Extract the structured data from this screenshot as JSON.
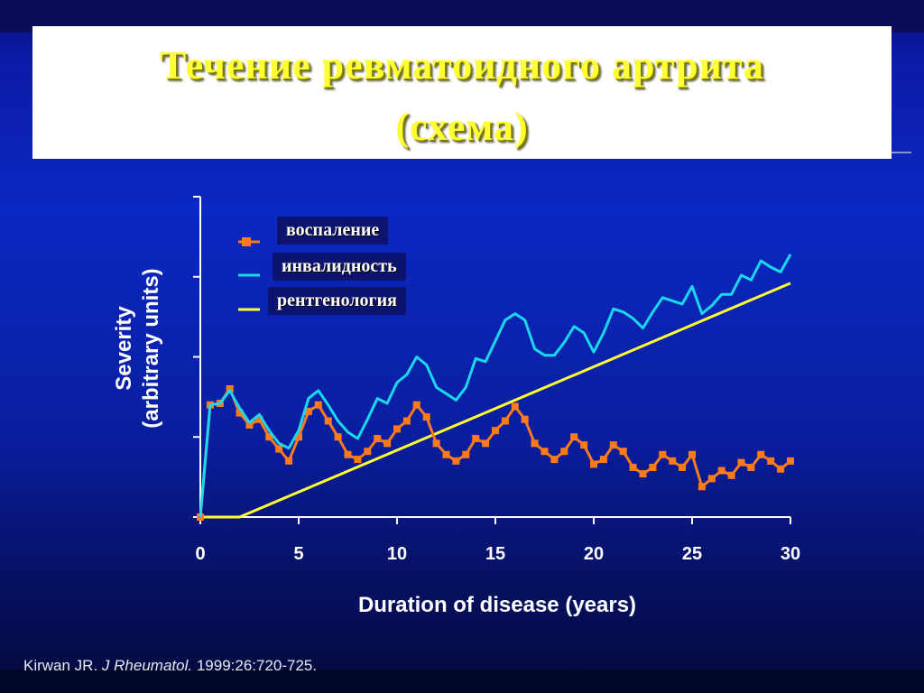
{
  "slide": {
    "title_line1": "Течение ревматоидного артрита",
    "title_line2": "(схема)",
    "citation_author": "Kirwan JR.",
    "citation_journal": "J Rheumatol.",
    "citation_ref": "1999:26:720-725."
  },
  "legend": {
    "inflammation": "воспаление",
    "disability": "инвалидность",
    "radiology": "рентгенология"
  },
  "colors": {
    "inflammation": "#ff7a1a",
    "disability": "#1ad8ee",
    "radiology": "#ffff33",
    "axis": "#ffffff"
  },
  "chart_data": {
    "type": "line",
    "xlabel": "Duration of disease (years)",
    "ylabel_line1": "Severity",
    "ylabel_line2": "(arbitrary units)",
    "xlim": [
      0,
      30
    ],
    "ylim": [
      0,
      4
    ],
    "x_ticks": [
      "0",
      "5",
      "10",
      "15",
      "20",
      "25",
      "30"
    ],
    "y_tick_count": 5,
    "series": [
      {
        "key": "inflammation",
        "marker": "square",
        "x": [
          0,
          0.5,
          1,
          1.5,
          2,
          2.5,
          3,
          3.5,
          4,
          4.5,
          5,
          5.5,
          6,
          6.5,
          7,
          7.5,
          8,
          8.5,
          9,
          9.5,
          10,
          10.5,
          11,
          11.5,
          12,
          12.5,
          13,
          13.5,
          14,
          14.5,
          15,
          15.5,
          16,
          16.5,
          17,
          17.5,
          18,
          18.5,
          19,
          19.5,
          20,
          20.5,
          21,
          21.5,
          22,
          22.5,
          23,
          23.5,
          24,
          24.5,
          25,
          25.5,
          26,
          26.5,
          27,
          27.5,
          28,
          28.5,
          29,
          29.5,
          30
        ],
        "values": [
          0,
          1.4,
          1.42,
          1.6,
          1.3,
          1.15,
          1.22,
          1.0,
          0.85,
          0.7,
          1.0,
          1.32,
          1.4,
          1.2,
          1.0,
          0.78,
          0.72,
          0.82,
          0.98,
          0.92,
          1.1,
          1.2,
          1.4,
          1.25,
          0.92,
          0.78,
          0.7,
          0.78,
          0.98,
          0.92,
          1.08,
          1.2,
          1.38,
          1.22,
          0.92,
          0.82,
          0.72,
          0.82,
          1.0,
          0.9,
          0.66,
          0.72,
          0.9,
          0.82,
          0.62,
          0.54,
          0.62,
          0.78,
          0.7,
          0.62,
          0.78,
          0.38,
          0.48,
          0.58,
          0.52,
          0.68,
          0.62,
          0.78,
          0.7,
          0.6,
          0.7
        ]
      },
      {
        "key": "disability",
        "marker": "none",
        "x": [
          0,
          0.5,
          1,
          1.5,
          2,
          2.5,
          3,
          3.5,
          4,
          4.5,
          5,
          5.5,
          6,
          6.5,
          7,
          7.5,
          8,
          8.5,
          9,
          9.5,
          10,
          10.5,
          11,
          11.5,
          12,
          12.5,
          13,
          13.5,
          14,
          14.5,
          15,
          15.5,
          16,
          16.5,
          17,
          17.5,
          18,
          18.5,
          19,
          19.5,
          20,
          20.5,
          21,
          21.5,
          22,
          22.5,
          23,
          23.5,
          24,
          24.5,
          25,
          25.5,
          26,
          26.5,
          27,
          27.5,
          28,
          28.5,
          29,
          29.5,
          30
        ],
        "values": [
          0,
          1.4,
          1.42,
          1.58,
          1.36,
          1.18,
          1.28,
          1.08,
          0.92,
          0.86,
          1.08,
          1.48,
          1.58,
          1.4,
          1.2,
          1.06,
          0.98,
          1.22,
          1.48,
          1.42,
          1.68,
          1.78,
          2.0,
          1.9,
          1.62,
          1.54,
          1.46,
          1.62,
          1.98,
          1.94,
          2.2,
          2.46,
          2.54,
          2.46,
          2.1,
          2.02,
          2.02,
          2.18,
          2.38,
          2.3,
          2.06,
          2.3,
          2.6,
          2.56,
          2.48,
          2.36,
          2.56,
          2.74,
          2.7,
          2.66,
          2.88,
          2.54,
          2.64,
          2.78,
          2.78,
          3.02,
          2.96,
          3.2,
          3.12,
          3.06,
          3.28
        ]
      },
      {
        "key": "radiology",
        "marker": "none",
        "x": [
          0,
          2,
          30
        ],
        "values": [
          0,
          0,
          2.92
        ]
      }
    ]
  }
}
